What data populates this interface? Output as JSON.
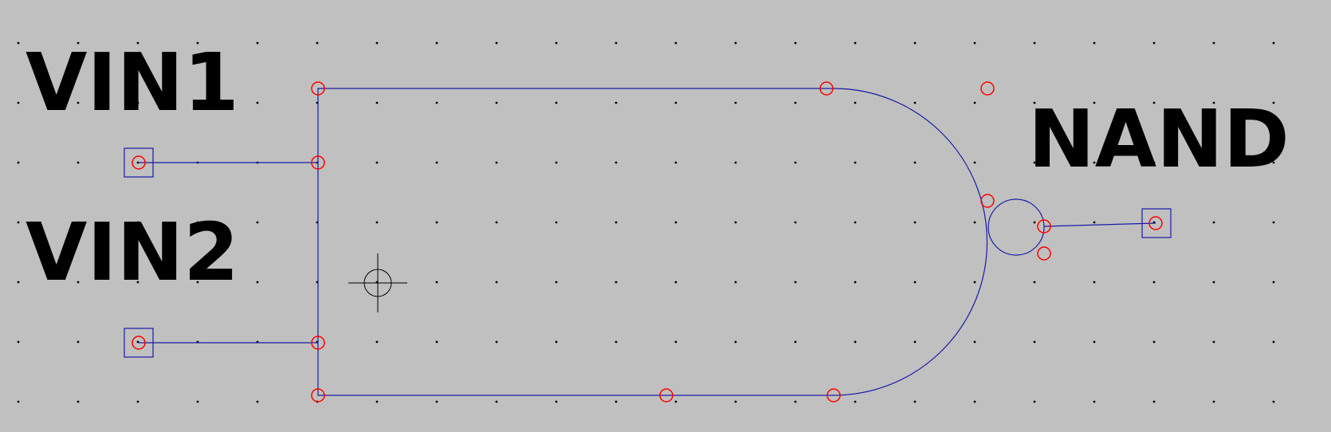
{
  "labels": {
    "input1": "VIN1",
    "input2": "VIN2",
    "output": "NAND"
  },
  "icons": {
    "cursor": "crosshair-icon",
    "pin": "pin-square-icon",
    "handle": "red-circle-icon"
  },
  "colors": {
    "background": "#c0c0c0",
    "grid_dot": "#000000",
    "wire": "#1a1aa6",
    "handle": "#ff0000",
    "text": "#000000"
  }
}
